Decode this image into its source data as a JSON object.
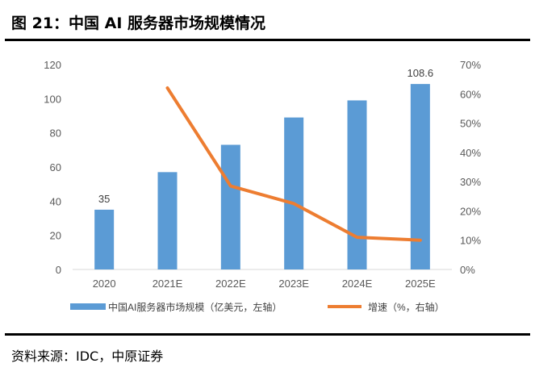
{
  "figure": {
    "title": "图 21：中国 AI 服务器市场规模情况",
    "source": "资料来源：IDC，中原证券"
  },
  "chart_data": {
    "type": "bar",
    "categories": [
      "2020",
      "2021E",
      "2022E",
      "2023E",
      "2024E",
      "2025E"
    ],
    "series": [
      {
        "name": "中国AI服务器市场规模（亿美元，左轴）",
        "type": "bar",
        "axis": "left",
        "values": [
          35,
          57,
          73,
          89,
          99,
          108.6
        ],
        "color": "#5b9bd5"
      },
      {
        "name": "增速（%，右轴）",
        "type": "line",
        "axis": "right",
        "values": [
          null,
          62,
          28.5,
          22.5,
          11,
          10
        ],
        "color": "#ed7d31"
      }
    ],
    "data_labels": [
      {
        "series": 0,
        "index": 0,
        "text": "35"
      },
      {
        "series": 0,
        "index": 5,
        "text": "108.6"
      }
    ],
    "y_left": {
      "ylim": [
        0,
        120
      ],
      "ticks": [
        "0",
        "20",
        "40",
        "60",
        "80",
        "100",
        "120"
      ]
    },
    "y_right": {
      "ylim": [
        0,
        70
      ],
      "ticks": [
        "0%",
        "10%",
        "20%",
        "30%",
        "40%",
        "50%",
        "60%",
        "70%"
      ]
    },
    "grid": false,
    "legend_position": "bottom"
  }
}
